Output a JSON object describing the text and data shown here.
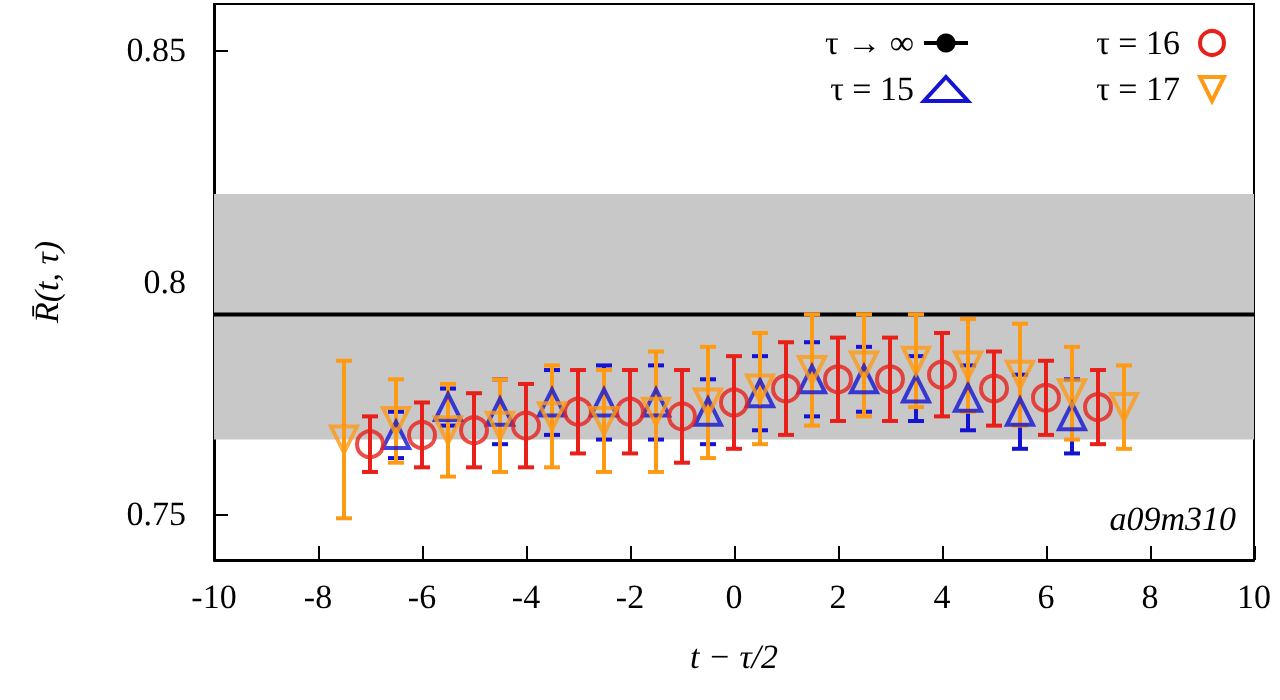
{
  "chart_data": {
    "type": "scatter",
    "xlabel": "t − τ/2",
    "ylabel": "R̄(t, τ)",
    "xlim": [
      -10,
      10
    ],
    "xticks": [
      -10,
      -8,
      -6,
      -4,
      -2,
      0,
      2,
      4,
      6,
      8,
      10
    ],
    "ylim": [
      0.74,
      0.86
    ],
    "yticks": [
      0.75,
      0.8,
      0.85
    ],
    "grid": false,
    "legend": "top right",
    "annotations": [
      "a09m310"
    ],
    "ref_lines": [
      {
        "axis": "y",
        "value": 0.793,
        "label": "τ → ∞",
        "color": "#000000",
        "line_style": "solid"
      }
    ],
    "bands": [
      {
        "axis": "y",
        "from": 0.766,
        "to": 0.819,
        "color": "#c8c8c8"
      }
    ],
    "series": [
      {
        "name": "τ = 15",
        "color": "#1414d2",
        "marker": "triangle",
        "x": [
          -6.5,
          -5.5,
          -4.5,
          -3.5,
          -2.5,
          -1.5,
          -0.5,
          0.5,
          1.5,
          2.5,
          3.5,
          4.5,
          5.5,
          6.5
        ],
        "values": [
          0.767,
          0.773,
          0.772,
          0.774,
          0.774,
          0.774,
          0.772,
          0.776,
          0.779,
          0.779,
          0.777,
          0.775,
          0.772,
          0.771
        ],
        "errors": [
          0.005,
          0.004,
          0.007,
          0.007,
          0.008,
          0.008,
          0.007,
          0.008,
          0.008,
          0.007,
          0.007,
          0.007,
          0.008,
          0.008
        ]
      },
      {
        "name": "τ = 16",
        "color": "#e8201a",
        "marker": "circle",
        "x": [
          -7,
          -6,
          -5,
          -4,
          -3,
          -2,
          -1,
          0,
          1,
          2,
          3,
          4,
          5,
          6,
          7
        ],
        "values": [
          0.765,
          0.767,
          0.768,
          0.769,
          0.772,
          0.772,
          0.771,
          0.774,
          0.777,
          0.779,
          0.779,
          0.78,
          0.777,
          0.775,
          0.773
        ],
        "errors": [
          0.006,
          0.007,
          0.008,
          0.009,
          0.009,
          0.009,
          0.01,
          0.01,
          0.01,
          0.009,
          0.009,
          0.009,
          0.008,
          0.008,
          0.008
        ]
      },
      {
        "name": "τ = 17",
        "color": "#ff9a14",
        "marker": "triangle_down",
        "x": [
          -7.5,
          -6.5,
          -5.5,
          -4.5,
          -3.5,
          -2.5,
          -1.5,
          -0.5,
          0.5,
          1.5,
          2.5,
          3.5,
          4.5,
          5.5,
          6.5,
          7.5
        ],
        "values": [
          0.766,
          0.77,
          0.768,
          0.769,
          0.771,
          0.77,
          0.772,
          0.774,
          0.777,
          0.781,
          0.782,
          0.783,
          0.782,
          0.78,
          0.776,
          0.773
        ],
        "errors": [
          0.017,
          0.009,
          0.01,
          0.01,
          0.011,
          0.011,
          0.013,
          0.012,
          0.012,
          0.012,
          0.011,
          0.01,
          0.01,
          0.011,
          0.01,
          0.009
        ]
      }
    ]
  }
}
